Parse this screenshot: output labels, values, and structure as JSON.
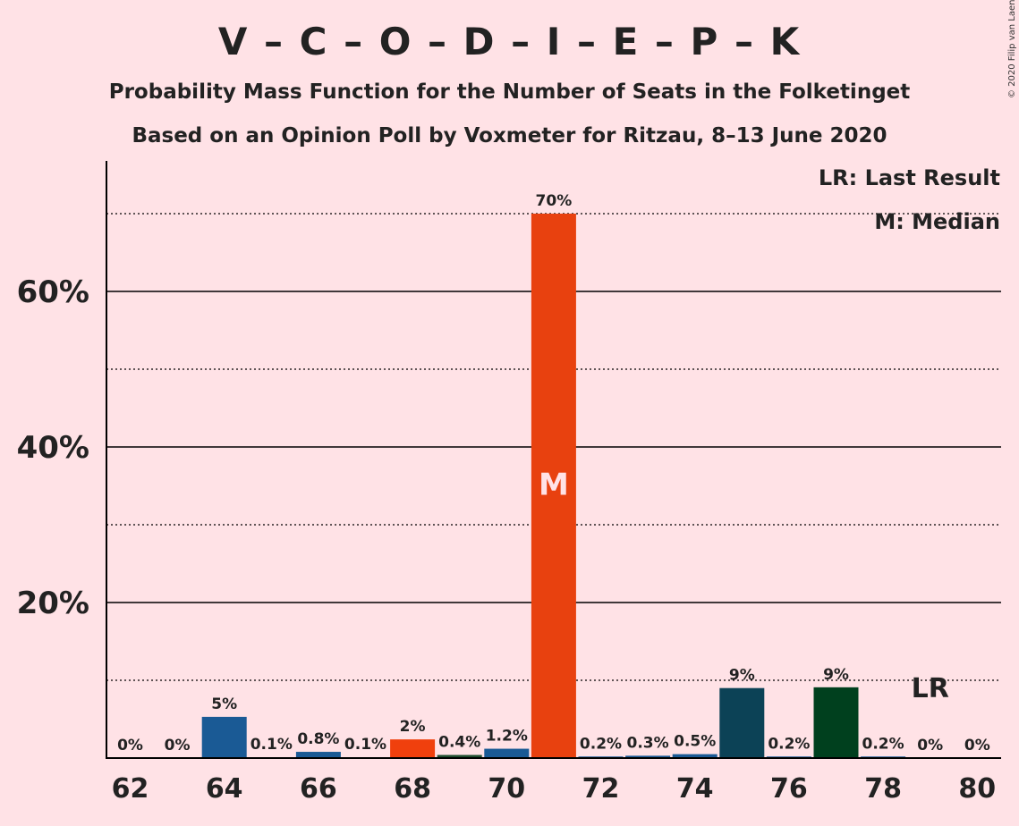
{
  "header": {
    "title": "V – C – O – D – I – E – P – K",
    "subtitle1": "Probability Mass Function for the Number of Seats in the Folketinget",
    "subtitle2": "Based on an Opinion Poll by Voxmeter for Ritzau, 8–13 June 2020",
    "copyright": "© 2020 Filip van Laenen"
  },
  "legend": {
    "last_result": "LR: Last Result",
    "median": "M: Median"
  },
  "chart_data": {
    "type": "bar",
    "x": [
      62,
      63,
      64,
      65,
      66,
      67,
      68,
      69,
      70,
      71,
      72,
      73,
      74,
      75,
      76,
      77,
      78,
      79,
      80
    ],
    "values": [
      0,
      0,
      5.3,
      0.1,
      0.8,
      0.1,
      2.4,
      0.4,
      1.2,
      70,
      0.2,
      0.3,
      0.5,
      9,
      0.2,
      9.1,
      0.2,
      0,
      0
    ],
    "data_labels": [
      "0%",
      "0%",
      "5%",
      "0.1%",
      "0.8%",
      "0.1%",
      "2%",
      "0.4%",
      "1.2%",
      "70%",
      "0.2%",
      "0.3%",
      "0.5%",
      "9%",
      "0.2%",
      "9%",
      "0.2%",
      "0%",
      "0%"
    ],
    "bar_colors": [
      "#1A5A95",
      "#1A5A95",
      "#1A5A95",
      "#1A5A95",
      "#1A5A95",
      "#1A5A95",
      "#F0400D",
      "#1F4D2E",
      "#1A5A95",
      "#E8410F",
      "#1A5A95",
      "#1A5A95",
      "#1A5A95",
      "#0C4256",
      "#1A5A95",
      "#00401E",
      "#1A5A95",
      "#1A5A95",
      "#1A5A95"
    ],
    "x_ticks": [
      62,
      64,
      66,
      68,
      70,
      72,
      74,
      76,
      78,
      80
    ],
    "y_ticks": [
      20,
      40,
      60
    ],
    "y_tick_labels": [
      "20%",
      "40%",
      "60%"
    ],
    "ylim": [
      0,
      76
    ],
    "median_seat": 71,
    "median_marker": "M",
    "last_result_seat": 79,
    "last_result_marker": "LR",
    "grid": true
  }
}
